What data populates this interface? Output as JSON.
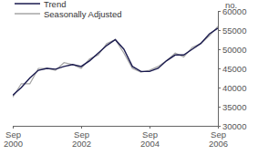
{
  "chart_data": {
    "type": "line",
    "ylabel": "no.",
    "categories": [
      "Sep 2000",
      null,
      null,
      null,
      null,
      null,
      null,
      null,
      "Sep 2002",
      null,
      null,
      null,
      null,
      null,
      null,
      null,
      "Sep 2004",
      null,
      null,
      null,
      null,
      null,
      null,
      null,
      "Sep 2006"
    ],
    "series": [
      {
        "name": "Trend",
        "color": "#1a1a4e",
        "values": [
          38000,
          40000,
          42500,
          44500,
          45000,
          44800,
          45500,
          46000,
          45500,
          47000,
          49000,
          51000,
          52500,
          50000,
          45500,
          44200,
          44200,
          45000,
          47000,
          48500,
          48500,
          50000,
          51500,
          54000,
          55500
        ]
      },
      {
        "name": "Seasonally Adjusted",
        "color": "#a6a6a6",
        "values": [
          37500,
          41000,
          41000,
          45000,
          45000,
          44500,
          46500,
          46000,
          45000,
          47500,
          48500,
          51500,
          52500,
          49000,
          45000,
          44000,
          44500,
          45500,
          47000,
          49000,
          48000,
          50500,
          51500,
          53500,
          56000
        ]
      }
    ],
    "ylim": [
      30000,
      60000
    ],
    "yticks": [
      30000,
      35000,
      40000,
      45000,
      50000,
      55000,
      60000
    ],
    "legend": "top-left"
  }
}
